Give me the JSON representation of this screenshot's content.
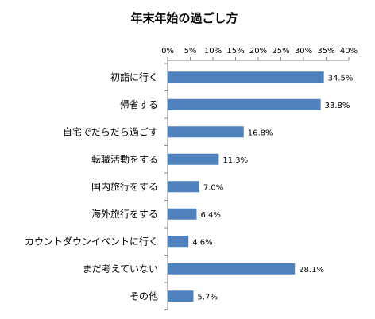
{
  "chart_data": {
    "type": "bar",
    "orientation": "horizontal",
    "title": "年末年始の過ごし方",
    "categories": [
      "初詣に行く",
      "帰省する",
      "自宅でだらだら過ごす",
      "転職活動をする",
      "国内旅行をする",
      "海外旅行をする",
      "カウントダウンイベントに行く",
      "まだ考えていない",
      "その他"
    ],
    "values": [
      34.5,
      33.8,
      16.8,
      11.3,
      7.0,
      6.4,
      4.6,
      28.1,
      5.7
    ],
    "value_labels": [
      "34.5%",
      "33.8%",
      "16.8%",
      "11.3%",
      "7.0%",
      "6.4%",
      "4.6%",
      "28.1%",
      "5.7%"
    ],
    "xlim": [
      0,
      40
    ],
    "ticks": [
      0,
      5,
      10,
      15,
      20,
      25,
      30,
      35,
      40
    ],
    "tick_labels": [
      "0%",
      "5%",
      "10%",
      "15%",
      "20%",
      "25%",
      "30%",
      "35%",
      "40%"
    ],
    "axis_position": "top",
    "grid": false,
    "legend": "none",
    "bar_color": "#4f81bd",
    "axis_color": "#868686"
  }
}
